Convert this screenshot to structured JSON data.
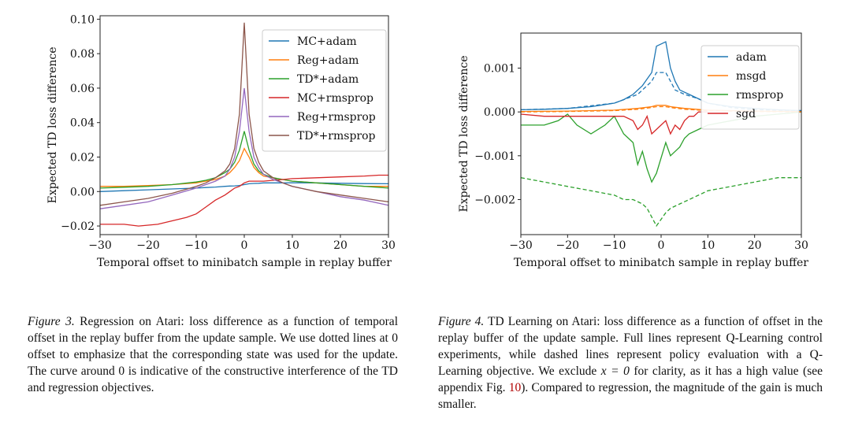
{
  "chart_data": [
    {
      "type": "line",
      "title": "",
      "xlabel": "Temporal offset to minibatch sample in replay buffer",
      "ylabel": "Expected TD loss difference",
      "xlim": [
        -30,
        30
      ],
      "ylim": [
        -0.025,
        0.102
      ],
      "xticks": [
        -30,
        -20,
        -10,
        0,
        10,
        20,
        30
      ],
      "xtick_labels": [
        "−30",
        "−20",
        "−10",
        "0",
        "10",
        "20",
        "30"
      ],
      "yticks": [
        -0.02,
        0.0,
        0.02,
        0.04,
        0.06,
        0.08,
        0.1
      ],
      "ytick_labels": [
        "−0.02",
        "0.00",
        "0.02",
        "0.04",
        "0.06",
        "0.08",
        "0.10"
      ],
      "grid": false,
      "legend_position": "top-right",
      "series": [
        {
          "name": "MC+adam",
          "color": "#1f77b4",
          "x": [
            -30,
            -25,
            -20,
            -15,
            -10,
            -8,
            -6,
            -4,
            -3,
            -2,
            -1,
            0,
            1,
            2,
            3,
            4,
            6,
            8,
            10,
            15,
            20,
            25,
            30
          ],
          "y": [
            0.0,
            0.0005,
            0.001,
            0.0015,
            0.002,
            0.0023,
            0.0026,
            0.003,
            0.0032,
            0.0033,
            0.0035,
            0.004,
            0.0045,
            0.0047,
            0.0048,
            0.005,
            0.005,
            0.005,
            0.0051,
            0.005,
            0.0048,
            0.0046,
            0.0045
          ]
        },
        {
          "name": "Reg+adam",
          "color": "#ff7f0e",
          "x": [
            -30,
            -25,
            -20,
            -15,
            -10,
            -8,
            -6,
            -4,
            -3,
            -2,
            -1,
            0,
            1,
            2,
            3,
            4,
            6,
            8,
            10,
            15,
            20,
            25,
            30
          ],
          "y": [
            0.003,
            0.003,
            0.0035,
            0.004,
            0.005,
            0.006,
            0.007,
            0.009,
            0.011,
            0.014,
            0.018,
            0.025,
            0.02,
            0.014,
            0.011,
            0.009,
            0.008,
            0.007,
            0.006,
            0.005,
            0.004,
            0.003,
            0.003
          ]
        },
        {
          "name": "TD*+adam",
          "color": "#2ca02c",
          "x": [
            -30,
            -25,
            -20,
            -15,
            -10,
            -8,
            -6,
            -4,
            -3,
            -2,
            -1,
            0,
            1,
            2,
            3,
            4,
            6,
            8,
            10,
            15,
            20,
            25,
            30
          ],
          "y": [
            0.002,
            0.0025,
            0.003,
            0.004,
            0.0055,
            0.0065,
            0.008,
            0.011,
            0.013,
            0.017,
            0.024,
            0.035,
            0.024,
            0.016,
            0.012,
            0.01,
            0.008,
            0.007,
            0.006,
            0.005,
            0.004,
            0.003,
            0.002
          ]
        },
        {
          "name": "MC+rmsprop",
          "color": "#d62728",
          "x": [
            -30,
            -25,
            -22,
            -20,
            -18,
            -15,
            -12,
            -10,
            -8,
            -6,
            -4,
            -3,
            -2,
            -1,
            0,
            1,
            2,
            3,
            4,
            6,
            8,
            10,
            15,
            20,
            25,
            28,
            30
          ],
          "y": [
            -0.019,
            -0.019,
            -0.02,
            -0.0195,
            -0.019,
            -0.017,
            -0.015,
            -0.013,
            -0.009,
            -0.005,
            -0.002,
            0.0,
            0.002,
            0.003,
            0.005,
            0.006,
            0.006,
            0.006,
            0.006,
            0.0065,
            0.007,
            0.0075,
            0.008,
            0.0085,
            0.009,
            0.0095,
            0.0095
          ]
        },
        {
          "name": "Reg+rmsprop",
          "color": "#9467bd",
          "x": [
            -30,
            -25,
            -20,
            -15,
            -10,
            -8,
            -6,
            -4,
            -3,
            -2,
            -1,
            0,
            1,
            2,
            3,
            4,
            6,
            8,
            10,
            15,
            20,
            25,
            30
          ],
          "y": [
            -0.01,
            -0.008,
            -0.006,
            -0.002,
            0.002,
            0.004,
            0.006,
            0.009,
            0.013,
            0.02,
            0.035,
            0.06,
            0.035,
            0.02,
            0.014,
            0.01,
            0.007,
            0.005,
            0.003,
            0.0,
            -0.003,
            -0.005,
            -0.008
          ]
        },
        {
          "name": "TD*+rmsprop",
          "color": "#8c564b",
          "x": [
            -30,
            -25,
            -20,
            -15,
            -10,
            -8,
            -6,
            -4,
            -3,
            -2,
            -1,
            0,
            1,
            2,
            3,
            4,
            6,
            8,
            10,
            15,
            20,
            25,
            30
          ],
          "y": [
            -0.008,
            -0.006,
            -0.004,
            -0.001,
            0.003,
            0.005,
            0.008,
            0.012,
            0.016,
            0.025,
            0.045,
            0.098,
            0.045,
            0.025,
            0.017,
            0.012,
            0.008,
            0.005,
            0.003,
            0.0,
            -0.002,
            -0.004,
            -0.006
          ]
        }
      ]
    },
    {
      "type": "line",
      "title": "",
      "xlabel": "Temporal offset to minibatch sample in replay buffer",
      "ylabel": "Expected TD loss difference",
      "xlim": [
        -30,
        30
      ],
      "ylim": [
        -0.0028,
        0.0018
      ],
      "xticks": [
        -30,
        -20,
        -10,
        0,
        10,
        20,
        30
      ],
      "xtick_labels": [
        "−30",
        "−20",
        "−10",
        "0",
        "10",
        "20",
        "30"
      ],
      "yticks": [
        -0.002,
        -0.001,
        0.0,
        0.001
      ],
      "ytick_labels": [
        "−0.002",
        "−0.001",
        "0.000",
        "0.001"
      ],
      "grid": false,
      "legend_position": "top-right",
      "series": [
        {
          "name": "adam",
          "color": "#1f77b4",
          "x": [
            -30,
            -25,
            -20,
            -15,
            -10,
            -8,
            -6,
            -4,
            -3,
            -2,
            -1,
            1,
            2,
            3,
            4,
            6,
            8,
            10,
            15,
            20,
            25,
            30
          ],
          "y": [
            5e-05,
            6e-05,
            8e-05,
            0.00012,
            0.0002,
            0.00028,
            0.0004,
            0.0006,
            0.00075,
            0.0009,
            0.0015,
            0.0016,
            0.001,
            0.0007,
            0.0005,
            0.0004,
            0.0003,
            0.0002,
            0.00012,
            8e-05,
            5e-05,
            3e-05
          ]
        },
        {
          "name": "msgd",
          "color": "#ff7f0e",
          "x": [
            -30,
            -20,
            -10,
            -5,
            -2,
            -1,
            1,
            2,
            5,
            10,
            20,
            30
          ],
          "y": [
            1e-05,
            2e-05,
            4e-05,
            8e-05,
            0.00012,
            0.00015,
            0.00015,
            0.00012,
            8e-05,
            4e-05,
            2e-05,
            1e-05
          ]
        },
        {
          "name": "rmsprop",
          "color": "#2ca02c",
          "x": [
            -30,
            -25,
            -22,
            -20,
            -18,
            -15,
            -12,
            -10,
            -8,
            -6,
            -5,
            -4,
            -3,
            -2,
            -1,
            1,
            2,
            3,
            4,
            5,
            6,
            8,
            10,
            15,
            20,
            25,
            30
          ],
          "y": [
            -0.0003,
            -0.0003,
            -0.0002,
            -5e-05,
            -0.0003,
            -0.0005,
            -0.0003,
            -0.0001,
            -0.0005,
            -0.0007,
            -0.0012,
            -0.0009,
            -0.0013,
            -0.0016,
            -0.0014,
            -0.0007,
            -0.001,
            -0.0009,
            -0.0008,
            -0.0006,
            -0.0005,
            -0.0004,
            -0.0003,
            -0.0002,
            -0.0001,
            -5e-05,
            0.0
          ]
        },
        {
          "name": "sgd",
          "color": "#d62728",
          "x": [
            -30,
            -25,
            -20,
            -15,
            -10,
            -8,
            -6,
            -5,
            -4,
            -3,
            -2,
            -1,
            1,
            2,
            3,
            4,
            5,
            6,
            7,
            8,
            10
          ],
          "y": [
            -5e-05,
            -0.0001,
            -0.0001,
            -0.0001,
            -0.0001,
            -0.0001,
            -0.0002,
            -0.0004,
            -0.0003,
            -0.0001,
            -0.0005,
            -0.0004,
            -0.0002,
            -0.0005,
            -0.0003,
            -0.0004,
            -0.0002,
            -0.0001,
            -0.0001,
            0.0,
            0.0
          ]
        },
        {
          "name": "",
          "color": "#1f77b4",
          "dashed": true,
          "x": [
            -30,
            -20,
            -10,
            -5,
            -3,
            -2,
            -1,
            1,
            2,
            3,
            5,
            8,
            10,
            15,
            20,
            30
          ],
          "y": [
            5e-05,
            8e-05,
            0.0002,
            0.0004,
            0.0006,
            0.0007,
            0.0009,
            0.0009,
            0.0007,
            0.0005,
            0.0004,
            0.0003,
            0.0002,
            0.0001,
            5e-05,
            3e-05
          ]
        },
        {
          "name": "",
          "color": "#ff7f0e",
          "dashed": true,
          "x": [
            -30,
            -20,
            -10,
            -5,
            -2,
            -1,
            1,
            2,
            5,
            10,
            20,
            30
          ],
          "y": [
            0.0,
            1e-05,
            3e-05,
            6e-05,
            0.0001,
            0.00012,
            0.00012,
            0.0001,
            6e-05,
            3e-05,
            1e-05,
            0.0
          ]
        },
        {
          "name": "",
          "color": "#2ca02c",
          "dashed": true,
          "x": [
            -30,
            -25,
            -20,
            -15,
            -10,
            -8,
            -6,
            -4,
            -3,
            -2,
            -1,
            1,
            2,
            4,
            6,
            8,
            10,
            15,
            20,
            25,
            30
          ],
          "y": [
            -0.0015,
            -0.0016,
            -0.0017,
            -0.0018,
            -0.0019,
            -0.002,
            -0.002,
            -0.0021,
            -0.0022,
            -0.0024,
            -0.0026,
            -0.0023,
            -0.0022,
            -0.0021,
            -0.002,
            -0.0019,
            -0.0018,
            -0.0017,
            -0.0016,
            -0.0015,
            -0.0015
          ]
        }
      ]
    }
  ],
  "captions": [
    {
      "label": "Figure 3.",
      "text": "Regression on Atari:  loss difference as a function of temporal offset in the replay buffer from the update sample. We use dotted lines at 0 offset to emphasize that the corresponding state was used for the update. The curve around 0 is indicative of the constructive interference of the TD and regression objectives."
    },
    {
      "label": "Figure 4.",
      "text_before_math": "TD Learning on Atari:  loss difference as a function of offset in the replay buffer of the update sample. Full lines represent Q-Learning control experiments, while dashed lines represent policy evaluation with a Q-Learning objective. We exclude ",
      "math": "x = 0",
      "text_after_math": " for clarity, as it has a high value (see appendix Fig. ",
      "ref": "10",
      "text_end": "). Compared to regression, the magnitude of the gain is much smaller."
    }
  ]
}
